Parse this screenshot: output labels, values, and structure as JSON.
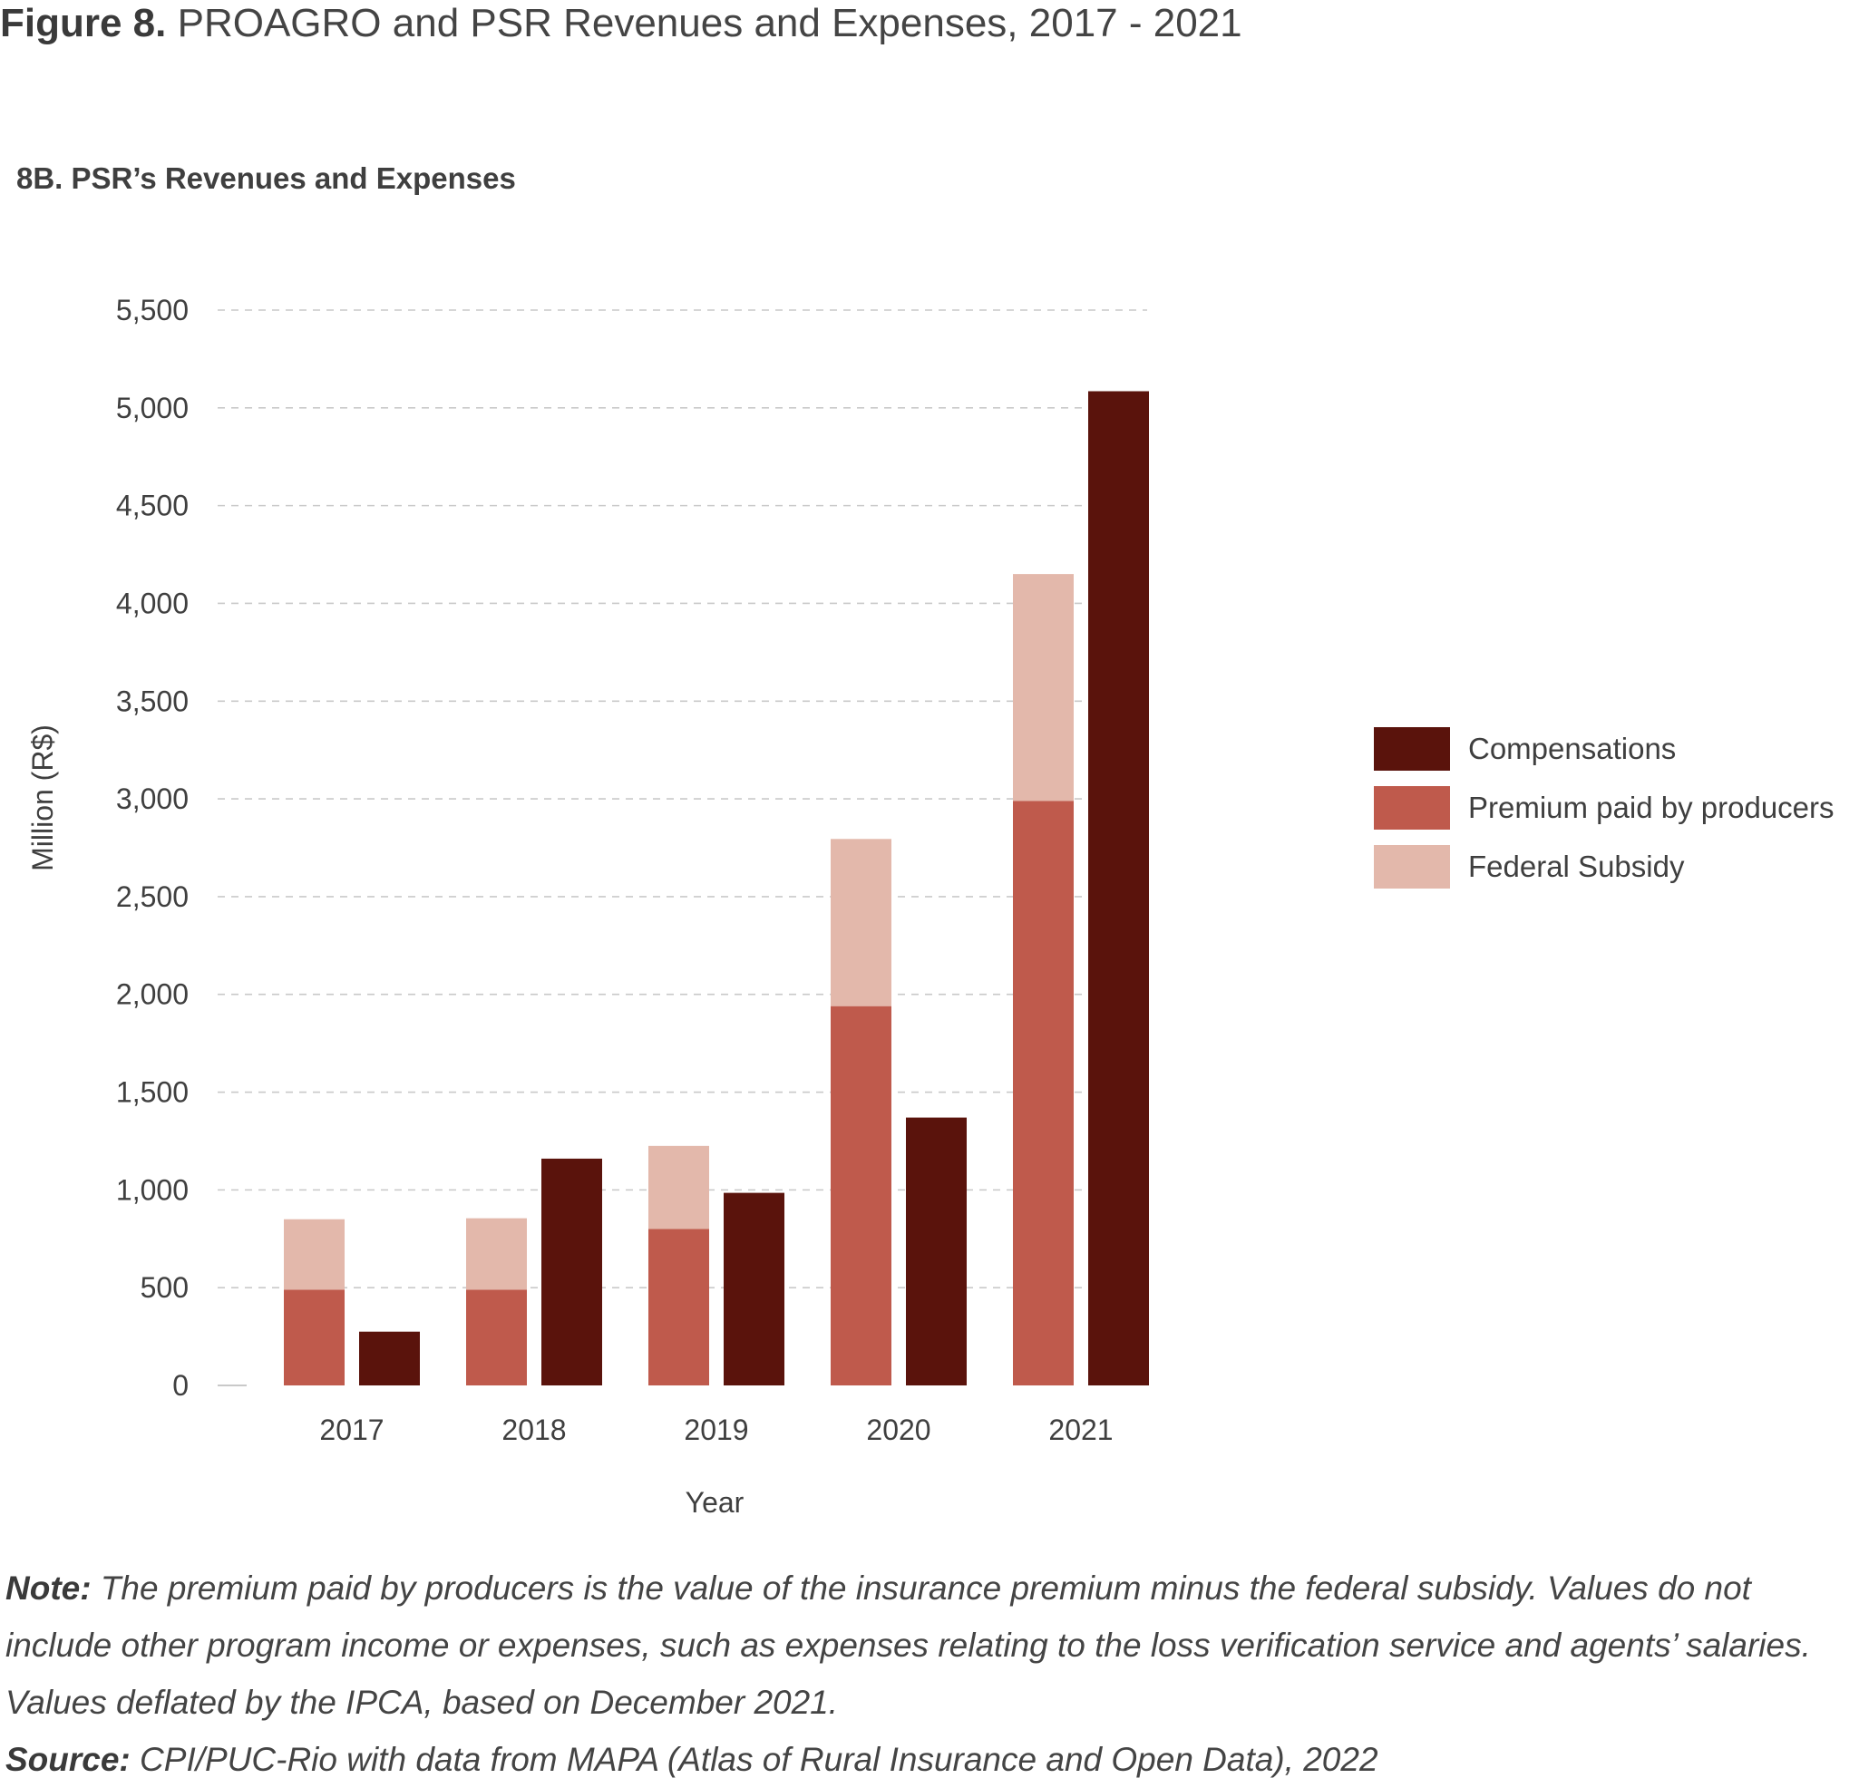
{
  "figure": {
    "title_bold": "Figure 8.",
    "title_rest": "PROAGRO and PSR Revenues and Expenses, 2017 - 2021",
    "subtitle": "8B. PSR’s Revenues and Expenses"
  },
  "colors": {
    "compensations": "#5a130c",
    "premium": "#bf5a4c",
    "subsidy": "#e3b8ab",
    "grid": "#c9c9c9"
  },
  "chart_data": {
    "type": "bar",
    "stacked_groups": true,
    "categories": [
      "2017",
      "2018",
      "2019",
      "2020",
      "2021"
    ],
    "series": [
      {
        "name": "Premium paid by producers",
        "stack": "revenues",
        "values": [
          490,
          490,
          800,
          1940,
          2990
        ]
      },
      {
        "name": "Federal Subsidy",
        "stack": "revenues",
        "values": [
          360,
          365,
          425,
          855,
          1160
        ]
      },
      {
        "name": "Compensations",
        "stack": "expenses",
        "values": [
          275,
          1160,
          985,
          1370,
          5085
        ]
      }
    ],
    "legend_order": [
      "Compensations",
      "Premium paid by producers",
      "Federal Subsidy"
    ],
    "legend_position": "right",
    "xlabel": "Year",
    "ylabel": "Million (R$)",
    "ylim": [
      0,
      5500
    ],
    "yticks": [
      0,
      500,
      1000,
      1500,
      2000,
      2500,
      3000,
      3500,
      4000,
      4500,
      5000,
      5500
    ],
    "ytick_labels": [
      "0",
      "500",
      "1,000",
      "1,500",
      "2,000",
      "2,500",
      "3,000",
      "3,500",
      "4,000",
      "4,500",
      "5,000",
      "5,500"
    ],
    "grid": "horizontal dashed"
  },
  "legend": {
    "items": [
      {
        "label": "Compensations",
        "color": "#5a130c"
      },
      {
        "label": "Premium paid by producers",
        "color": "#bf5a4c"
      },
      {
        "label": "Federal Subsidy",
        "color": "#e3b8ab"
      }
    ]
  },
  "note": {
    "label": "Note:",
    "text": "The premium paid by producers is the value of the insurance premium minus the federal subsidy. Values do not include other program income or expenses, such as expenses relating to the loss verification service and agents’ salaries. Values deflated by the IPCA, based on December 2021."
  },
  "source": {
    "label": "Source:",
    "text": "CPI/PUC-Rio with data from MAPA (Atlas of Rural Insurance and Open Data), 2022"
  }
}
